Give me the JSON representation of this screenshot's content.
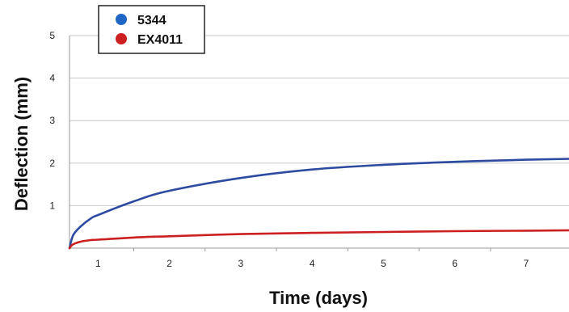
{
  "chart_data": {
    "type": "line",
    "title": "",
    "xlabel": "Time (days)",
    "ylabel": "Deflection (mm)",
    "xlim": [
      0.6,
      7.6
    ],
    "ylim": [
      0,
      5
    ],
    "x_ticks": [
      "1",
      "2",
      "3",
      "4",
      "5",
      "6",
      "7"
    ],
    "y_ticks": [
      "1",
      "2",
      "3",
      "4",
      "5"
    ],
    "grid": "horizontal",
    "legend_position": "top-left",
    "series": [
      {
        "name": "5344",
        "color": "#2b4aa0",
        "x": [
          0.6,
          0.65,
          0.75,
          0.9,
          1,
          1.5,
          2,
          3,
          4,
          5,
          6,
          7,
          7.6
        ],
        "y": [
          0,
          0.3,
          0.5,
          0.7,
          0.78,
          1.1,
          1.35,
          1.65,
          1.85,
          1.96,
          2.03,
          2.08,
          2.1
        ]
      },
      {
        "name": "EX4011",
        "color": "#cc2020",
        "x": [
          0.6,
          0.65,
          0.75,
          0.9,
          1,
          1.5,
          2,
          3,
          4,
          5,
          6,
          7,
          7.6
        ],
        "y": [
          0,
          0.09,
          0.15,
          0.19,
          0.2,
          0.25,
          0.28,
          0.33,
          0.36,
          0.38,
          0.4,
          0.41,
          0.42
        ]
      }
    ]
  }
}
